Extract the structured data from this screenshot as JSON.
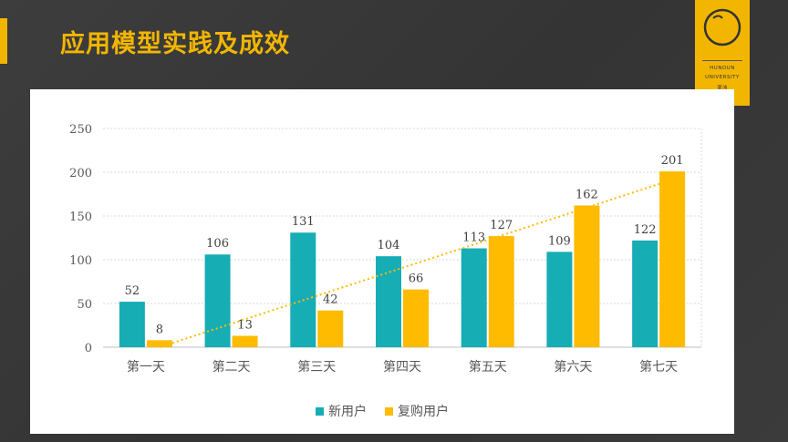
{
  "slide": {
    "title": "应用模型实践及成效"
  },
  "logo": {
    "line1": "HUNDUN",
    "line2": "UNIVERSITY",
    "line3": "混沌"
  },
  "colors": {
    "accent": "#f2b600",
    "new_users": "#16adb5",
    "repurchase_users": "#ffbb00",
    "background": "#3a3a3a"
  },
  "chart_data": {
    "type": "bar",
    "categories": [
      "第一天",
      "第二天",
      "第三天",
      "第四天",
      "第五天",
      "第六天",
      "第七天"
    ],
    "series": [
      {
        "name": "新用户",
        "values": [
          52,
          106,
          131,
          104,
          113,
          109,
          122
        ],
        "color": "#16adb5"
      },
      {
        "name": "复购用户",
        "values": [
          8,
          13,
          42,
          66,
          127,
          162,
          201
        ],
        "color": "#ffbb00"
      }
    ],
    "trendline": {
      "series": "复购用户",
      "style": "dotted",
      "type": "linear"
    },
    "ylim": [
      0,
      250
    ],
    "yticks": [
      0,
      50,
      100,
      150,
      200,
      250
    ],
    "grid": true,
    "legend_position": "bottom"
  }
}
